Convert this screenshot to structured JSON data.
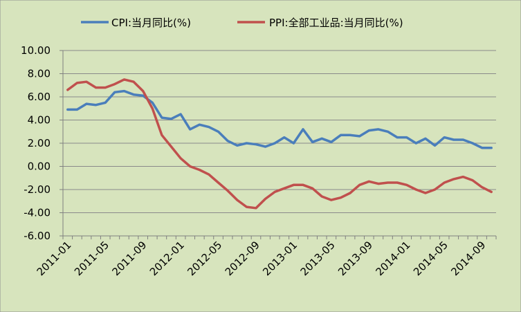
{
  "chart_data": {
    "type": "line",
    "title": "",
    "xlabel": "",
    "ylabel": "",
    "ylim": [
      -6,
      10
    ],
    "ytick_step": 2,
    "grid": "horizontal",
    "legend_position": "top",
    "background_color": "#d7e4bd",
    "x": [
      "2011-01",
      "2011-02",
      "2011-03",
      "2011-04",
      "2011-05",
      "2011-06",
      "2011-07",
      "2011-08",
      "2011-09",
      "2011-10",
      "2011-11",
      "2011-12",
      "2012-01",
      "2012-02",
      "2012-03",
      "2012-04",
      "2012-05",
      "2012-06",
      "2012-07",
      "2012-08",
      "2012-09",
      "2012-10",
      "2012-11",
      "2012-12",
      "2013-01",
      "2013-02",
      "2013-03",
      "2013-04",
      "2013-05",
      "2013-06",
      "2013-07",
      "2013-08",
      "2013-09",
      "2013-10",
      "2013-11",
      "2013-12",
      "2014-01",
      "2014-02",
      "2014-03",
      "2014-04",
      "2014-05",
      "2014-06",
      "2014-07",
      "2014-08",
      "2014-09",
      "2014-10"
    ],
    "x_tick_labels": [
      "2011-01",
      "2011-05",
      "2011-09",
      "2012-01",
      "2012-05",
      "2012-09",
      "2013-01",
      "2013-05",
      "2013-09",
      "2014-01",
      "2014-05",
      "2014-09"
    ],
    "series": [
      {
        "name": "CPI:当月同比(%)",
        "color": "#4a7ebb",
        "values": [
          4.9,
          4.9,
          5.4,
          5.3,
          5.5,
          6.4,
          6.5,
          6.2,
          6.1,
          5.5,
          4.2,
          4.1,
          4.5,
          3.2,
          3.6,
          3.4,
          3.0,
          2.2,
          1.8,
          2.0,
          1.9,
          1.7,
          2.0,
          2.5,
          2.0,
          3.2,
          2.1,
          2.4,
          2.1,
          2.7,
          2.7,
          2.6,
          3.1,
          3.2,
          3.0,
          2.5,
          2.5,
          2.0,
          2.4,
          1.8,
          2.5,
          2.3,
          2.3,
          2.0,
          1.6,
          1.6
        ]
      },
      {
        "name": "PPI:全部工业品:当月同比(%)",
        "color": "#c0504d",
        "values": [
          6.6,
          7.2,
          7.3,
          6.8,
          6.8,
          7.1,
          7.5,
          7.3,
          6.5,
          5.0,
          2.7,
          1.7,
          0.7,
          0.0,
          -0.3,
          -0.7,
          -1.4,
          -2.1,
          -2.9,
          -3.5,
          -3.6,
          -2.8,
          -2.2,
          -1.9,
          -1.6,
          -1.6,
          -1.9,
          -2.6,
          -2.9,
          -2.7,
          -2.3,
          -1.6,
          -1.3,
          -1.5,
          -1.4,
          -1.4,
          -1.6,
          -2.0,
          -2.3,
          -2.0,
          -1.4,
          -1.1,
          -0.9,
          -1.2,
          -1.8,
          -2.2
        ]
      }
    ]
  }
}
